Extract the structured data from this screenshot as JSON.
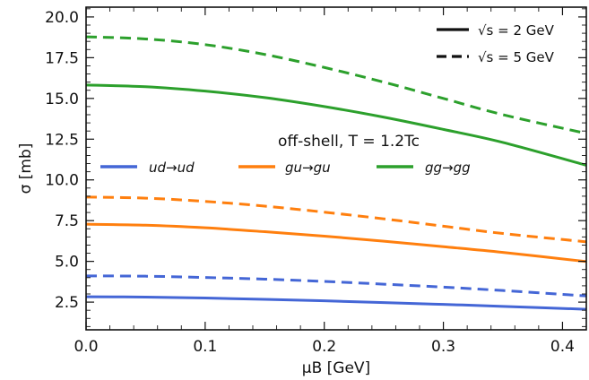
{
  "chart_data": {
    "type": "line",
    "xlabel": "μB [GeV]",
    "ylabel": "σ [mb]",
    "xlim": [
      0.0,
      0.42
    ],
    "ylim": [
      0.8,
      20.6
    ],
    "x_ticks": [
      "0.0",
      "0.1",
      "0.2",
      "0.3",
      "0.4"
    ],
    "y_ticks": [
      "2.5",
      "5.0",
      "7.5",
      "10.0",
      "12.5",
      "15.0",
      "17.5",
      "20.0"
    ],
    "annotation": "off-shell, T = 1.2Tc",
    "line_style_legend": [
      {
        "label": "√s = 2 GeV",
        "dash": "solid"
      },
      {
        "label": "√s = 5 GeV",
        "dash": "dashed"
      }
    ],
    "process_legend": [
      {
        "label": "ud→ud",
        "color": "#4466d6"
      },
      {
        "label": "gu→gu",
        "color": "#ff7f0e"
      },
      {
        "label": "gg→gg",
        "color": "#2ca02c"
      }
    ],
    "grid": false,
    "series": [
      {
        "process": "ud→ud",
        "energy": "√s = 2 GeV",
        "color": "#4466d6",
        "dash": "solid",
        "x": [
          0.0,
          0.05,
          0.1,
          0.15,
          0.2,
          0.25,
          0.3,
          0.35,
          0.42
        ],
        "y": [
          2.83,
          2.81,
          2.75,
          2.67,
          2.58,
          2.47,
          2.36,
          2.24,
          2.06
        ]
      },
      {
        "process": "ud→ud",
        "energy": "√s = 5 GeV",
        "color": "#4466d6",
        "dash": "dashed",
        "x": [
          0.0,
          0.05,
          0.1,
          0.15,
          0.2,
          0.25,
          0.3,
          0.35,
          0.42
        ],
        "y": [
          4.11,
          4.09,
          4.01,
          3.91,
          3.77,
          3.6,
          3.42,
          3.21,
          2.88
        ]
      },
      {
        "process": "gu→gu",
        "energy": "√s = 2 GeV",
        "color": "#ff7f0e",
        "dash": "solid",
        "x": [
          0.0,
          0.05,
          0.1,
          0.15,
          0.2,
          0.25,
          0.3,
          0.35,
          0.42
        ],
        "y": [
          7.28,
          7.22,
          7.06,
          6.82,
          6.55,
          6.24,
          5.9,
          5.55,
          4.99
        ]
      },
      {
        "process": "gu→gu",
        "energy": "√s = 5 GeV",
        "color": "#ff7f0e",
        "dash": "dashed",
        "x": [
          0.0,
          0.05,
          0.1,
          0.15,
          0.2,
          0.25,
          0.3,
          0.35,
          0.42
        ],
        "y": [
          8.95,
          8.88,
          8.68,
          8.39,
          8.02,
          7.61,
          7.16,
          6.71,
          6.2
        ]
      },
      {
        "process": "gg→gg",
        "energy": "√s = 2 GeV",
        "color": "#2ca02c",
        "dash": "solid",
        "x": [
          0.0,
          0.05,
          0.1,
          0.15,
          0.2,
          0.25,
          0.3,
          0.35,
          0.42
        ],
        "y": [
          15.82,
          15.72,
          15.45,
          15.05,
          14.5,
          13.85,
          13.1,
          12.3,
          10.9
        ]
      },
      {
        "process": "gg→gg",
        "energy": "√s = 5 GeV",
        "color": "#2ca02c",
        "dash": "dashed",
        "x": [
          0.0,
          0.05,
          0.1,
          0.15,
          0.2,
          0.25,
          0.3,
          0.35,
          0.42
        ],
        "y": [
          18.78,
          18.65,
          18.3,
          17.7,
          16.9,
          16.0,
          15.0,
          14.0,
          12.85
        ]
      }
    ]
  }
}
